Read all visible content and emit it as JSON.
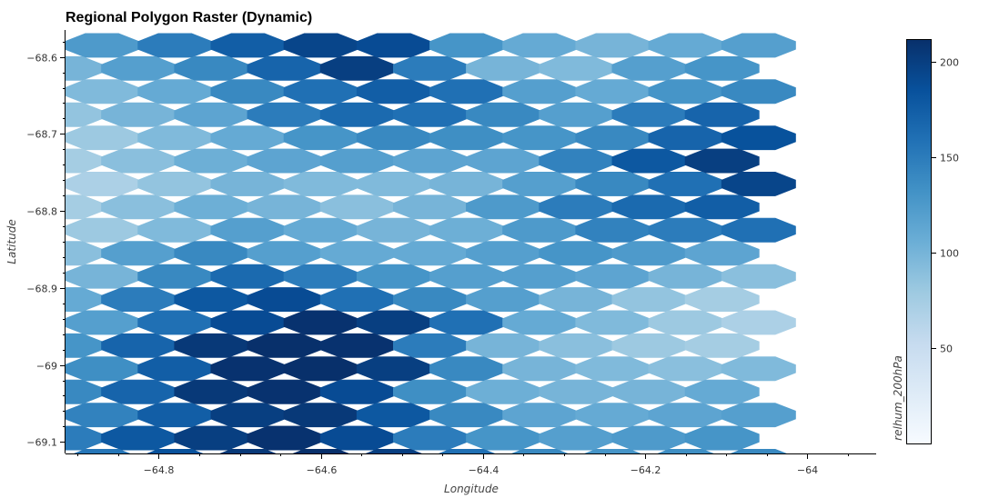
{
  "chart_data": {
    "type": "heatmap",
    "title": "Regional Polygon Raster (Dynamic)",
    "xlabel": "Longitude",
    "ylabel": "Latitude",
    "xlim": [
      -64.915,
      -63.915
    ],
    "ylim": [
      -69.115,
      -68.565
    ],
    "x_ticks": [
      -64.8,
      -64.6,
      -64.4,
      -64.2,
      -64.0
    ],
    "x_tick_labels": [
      "−64.8",
      "−64.6",
      "−64.4",
      "−64.2",
      "−64"
    ],
    "y_ticks": [
      -68.6,
      -68.7,
      -68.8,
      -68.9,
      -69.0,
      -69.1
    ],
    "y_tick_labels": [
      "−68.6",
      "−68.7",
      "−68.8",
      "−68.9",
      "−69",
      "−69.1"
    ],
    "colorbar": {
      "label": "relhum_200hPa",
      "min": 0,
      "max": 212,
      "ticks": [
        50,
        100,
        150,
        200
      ],
      "tick_labels": [
        "50",
        "100",
        "150",
        "200"
      ],
      "colormap": "Blues"
    },
    "cells": {
      "lon_start": -64.87,
      "lat_start": -68.585,
      "dlon": 0.09,
      "dlat": 0.03,
      "odd_row_lon_shift": -0.045,
      "values": [
        [
          125,
          150,
          175,
          195,
          190,
          130,
          110,
          100,
          110,
          120
        ],
        [
          100,
          120,
          140,
          170,
          200,
          150,
          100,
          95,
          120,
          130
        ],
        [
          95,
          110,
          140,
          160,
          175,
          160,
          120,
          110,
          130,
          140
        ],
        [
          85,
          100,
          115,
          150,
          165,
          160,
          140,
          120,
          150,
          170
        ],
        [
          80,
          95,
          110,
          130,
          140,
          135,
          130,
          140,
          170,
          185
        ],
        [
          75,
          90,
          105,
          115,
          120,
          115,
          115,
          145,
          180,
          200
        ],
        [
          70,
          85,
          100,
          95,
          95,
          100,
          120,
          140,
          160,
          195
        ],
        [
          75,
          90,
          105,
          100,
          90,
          100,
          125,
          150,
          165,
          175
        ],
        [
          80,
          95,
          120,
          110,
          100,
          105,
          125,
          145,
          150,
          160
        ],
        [
          90,
          120,
          140,
          120,
          110,
          110,
          120,
          130,
          125,
          115
        ],
        [
          100,
          140,
          165,
          150,
          130,
          120,
          120,
          115,
          100,
          90
        ],
        [
          110,
          150,
          180,
          190,
          160,
          140,
          120,
          100,
          85,
          75
        ],
        [
          120,
          160,
          190,
          210,
          200,
          160,
          110,
          95,
          80,
          70
        ],
        [
          130,
          170,
          205,
          215,
          210,
          150,
          100,
          90,
          80,
          75
        ],
        [
          135,
          175,
          210,
          215,
          200,
          140,
          100,
          95,
          90,
          95
        ],
        [
          140,
          170,
          205,
          210,
          190,
          135,
          105,
          100,
          100,
          110
        ],
        [
          145,
          175,
          200,
          205,
          180,
          140,
          115,
          110,
          115,
          120
        ],
        [
          150,
          180,
          200,
          210,
          190,
          150,
          130,
          120,
          125,
          130
        ],
        [
          155,
          185,
          205,
          215,
          200,
          160,
          140,
          130,
          135,
          140
        ]
      ]
    }
  }
}
